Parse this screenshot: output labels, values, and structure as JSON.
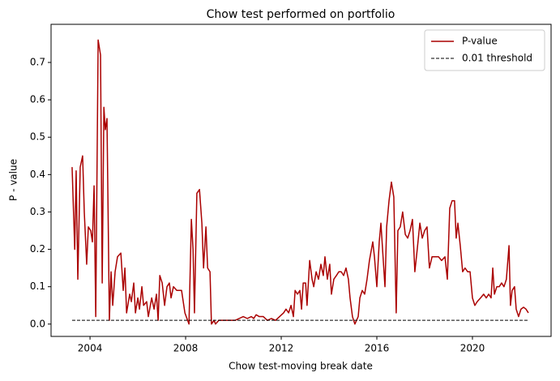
{
  "chart_data": {
    "type": "line",
    "title": "Chow test performed on portfolio",
    "x_label": "Chow test-moving break date",
    "y_label": "P - value",
    "xlim": [
      2002.37,
      2023.29
    ],
    "xticks": [
      2004,
      2008,
      2012,
      2016,
      2020
    ],
    "ylim": [
      -0.033,
      0.802
    ],
    "yticks": [
      {
        "value": 0,
        "label": "0.0"
      },
      0.1,
      0.2,
      0.3,
      0.4,
      0.5,
      0.6,
      0.7
    ],
    "legend": "upper right",
    "series": [
      {
        "name": "P-value",
        "color": "#aa0000",
        "dash": "solid",
        "x": [
          2003.25,
          2003.36,
          2003.42,
          2003.49,
          2003.59,
          2003.69,
          2003.76,
          2003.86,
          2003.93,
          2004.03,
          2004.1,
          2004.17,
          2004.24,
          2004.34,
          2004.44,
          2004.51,
          2004.58,
          2004.64,
          2004.71,
          2004.81,
          2004.88,
          2004.95,
          2005.05,
          2005.15,
          2005.29,
          2005.39,
          2005.46,
          2005.53,
          2005.66,
          2005.73,
          2005.83,
          2005.9,
          2006.0,
          2006.07,
          2006.17,
          2006.24,
          2006.37,
          2006.44,
          2006.58,
          2006.68,
          2006.78,
          2006.85,
          2006.92,
          2007.02,
          2007.12,
          2007.22,
          2007.32,
          2007.39,
          2007.49,
          2007.63,
          2007.83,
          2007.97,
          2008.14,
          2008.24,
          2008.31,
          2008.37,
          2008.47,
          2008.58,
          2008.68,
          2008.75,
          2008.85,
          2008.92,
          2009.02,
          2009.08,
          2009.19,
          2009.25,
          2009.39,
          2009.56,
          2009.73,
          2009.9,
          2010.07,
          2010.24,
          2010.41,
          2010.58,
          2010.75,
          2010.85,
          2010.95,
          2011.08,
          2011.25,
          2011.42,
          2011.59,
          2011.76,
          2011.93,
          2012.1,
          2012.2,
          2012.31,
          2012.41,
          2012.51,
          2012.58,
          2012.68,
          2012.78,
          2012.85,
          2012.92,
          2013.02,
          2013.08,
          2013.19,
          2013.29,
          2013.36,
          2013.46,
          2013.56,
          2013.66,
          2013.76,
          2013.83,
          2013.93,
          2014.03,
          2014.1,
          2014.2,
          2014.31,
          2014.41,
          2014.51,
          2014.61,
          2014.71,
          2014.81,
          2014.88,
          2014.98,
          2015.08,
          2015.22,
          2015.29,
          2015.39,
          2015.49,
          2015.59,
          2015.69,
          2015.83,
          2015.9,
          2016.0,
          2016.1,
          2016.17,
          2016.27,
          2016.34,
          2016.41,
          2016.51,
          2016.61,
          2016.71,
          2016.81,
          2016.88,
          2016.98,
          2017.08,
          2017.19,
          2017.29,
          2017.39,
          2017.49,
          2017.59,
          2017.69,
          2017.8,
          2017.9,
          2018.0,
          2018.1,
          2018.2,
          2018.31,
          2018.44,
          2018.58,
          2018.71,
          2018.85,
          2018.95,
          2019.05,
          2019.15,
          2019.25,
          2019.32,
          2019.39,
          2019.49,
          2019.59,
          2019.69,
          2019.8,
          2019.9,
          2020.0,
          2020.1,
          2020.2,
          2020.34,
          2020.47,
          2020.58,
          2020.68,
          2020.78,
          2020.85,
          2020.92,
          2021.02,
          2021.12,
          2021.22,
          2021.32,
          2021.42,
          2021.53,
          2021.59,
          2021.66,
          2021.76,
          2021.83,
          2021.93,
          2022.03,
          2022.14,
          2022.24,
          2022.34
        ],
        "values": [
          0.42,
          0.2,
          0.41,
          0.12,
          0.42,
          0.45,
          0.3,
          0.16,
          0.26,
          0.25,
          0.22,
          0.37,
          0.02,
          0.76,
          0.72,
          0.11,
          0.58,
          0.52,
          0.55,
          0.01,
          0.14,
          0.05,
          0.14,
          0.18,
          0.19,
          0.09,
          0.15,
          0.03,
          0.08,
          0.06,
          0.11,
          0.03,
          0.07,
          0.04,
          0.1,
          0.05,
          0.06,
          0.02,
          0.07,
          0.04,
          0.08,
          0.01,
          0.13,
          0.11,
          0.05,
          0.1,
          0.11,
          0.07,
          0.1,
          0.09,
          0.09,
          0.03,
          0.0,
          0.28,
          0.2,
          0.03,
          0.35,
          0.36,
          0.27,
          0.15,
          0.26,
          0.15,
          0.14,
          0.0,
          0.01,
          0.0,
          0.01,
          0.01,
          0.01,
          0.01,
          0.01,
          0.015,
          0.02,
          0.015,
          0.02,
          0.015,
          0.025,
          0.02,
          0.02,
          0.01,
          0.015,
          0.01,
          0.02,
          0.03,
          0.04,
          0.03,
          0.05,
          0.02,
          0.09,
          0.08,
          0.09,
          0.04,
          0.11,
          0.11,
          0.05,
          0.17,
          0.12,
          0.1,
          0.14,
          0.12,
          0.16,
          0.13,
          0.18,
          0.12,
          0.16,
          0.08,
          0.12,
          0.13,
          0.14,
          0.14,
          0.13,
          0.15,
          0.12,
          0.07,
          0.02,
          0.0,
          0.02,
          0.07,
          0.09,
          0.08,
          0.12,
          0.17,
          0.22,
          0.18,
          0.1,
          0.22,
          0.27,
          0.17,
          0.1,
          0.26,
          0.33,
          0.38,
          0.34,
          0.03,
          0.25,
          0.26,
          0.3,
          0.24,
          0.23,
          0.25,
          0.28,
          0.14,
          0.2,
          0.27,
          0.23,
          0.25,
          0.26,
          0.15,
          0.18,
          0.18,
          0.18,
          0.17,
          0.18,
          0.12,
          0.31,
          0.33,
          0.33,
          0.23,
          0.27,
          0.21,
          0.14,
          0.15,
          0.14,
          0.14,
          0.07,
          0.05,
          0.06,
          0.07,
          0.08,
          0.07,
          0.08,
          0.07,
          0.15,
          0.08,
          0.1,
          0.1,
          0.11,
          0.1,
          0.12,
          0.21,
          0.05,
          0.09,
          0.1,
          0.04,
          0.02,
          0.04,
          0.045,
          0.04,
          0.03
        ]
      },
      {
        "name": "0.01 threshold",
        "color": "#000000",
        "dash": "dashed",
        "x": [
          2003.25,
          2022.34
        ],
        "values": [
          0.01,
          0.01
        ]
      }
    ]
  }
}
